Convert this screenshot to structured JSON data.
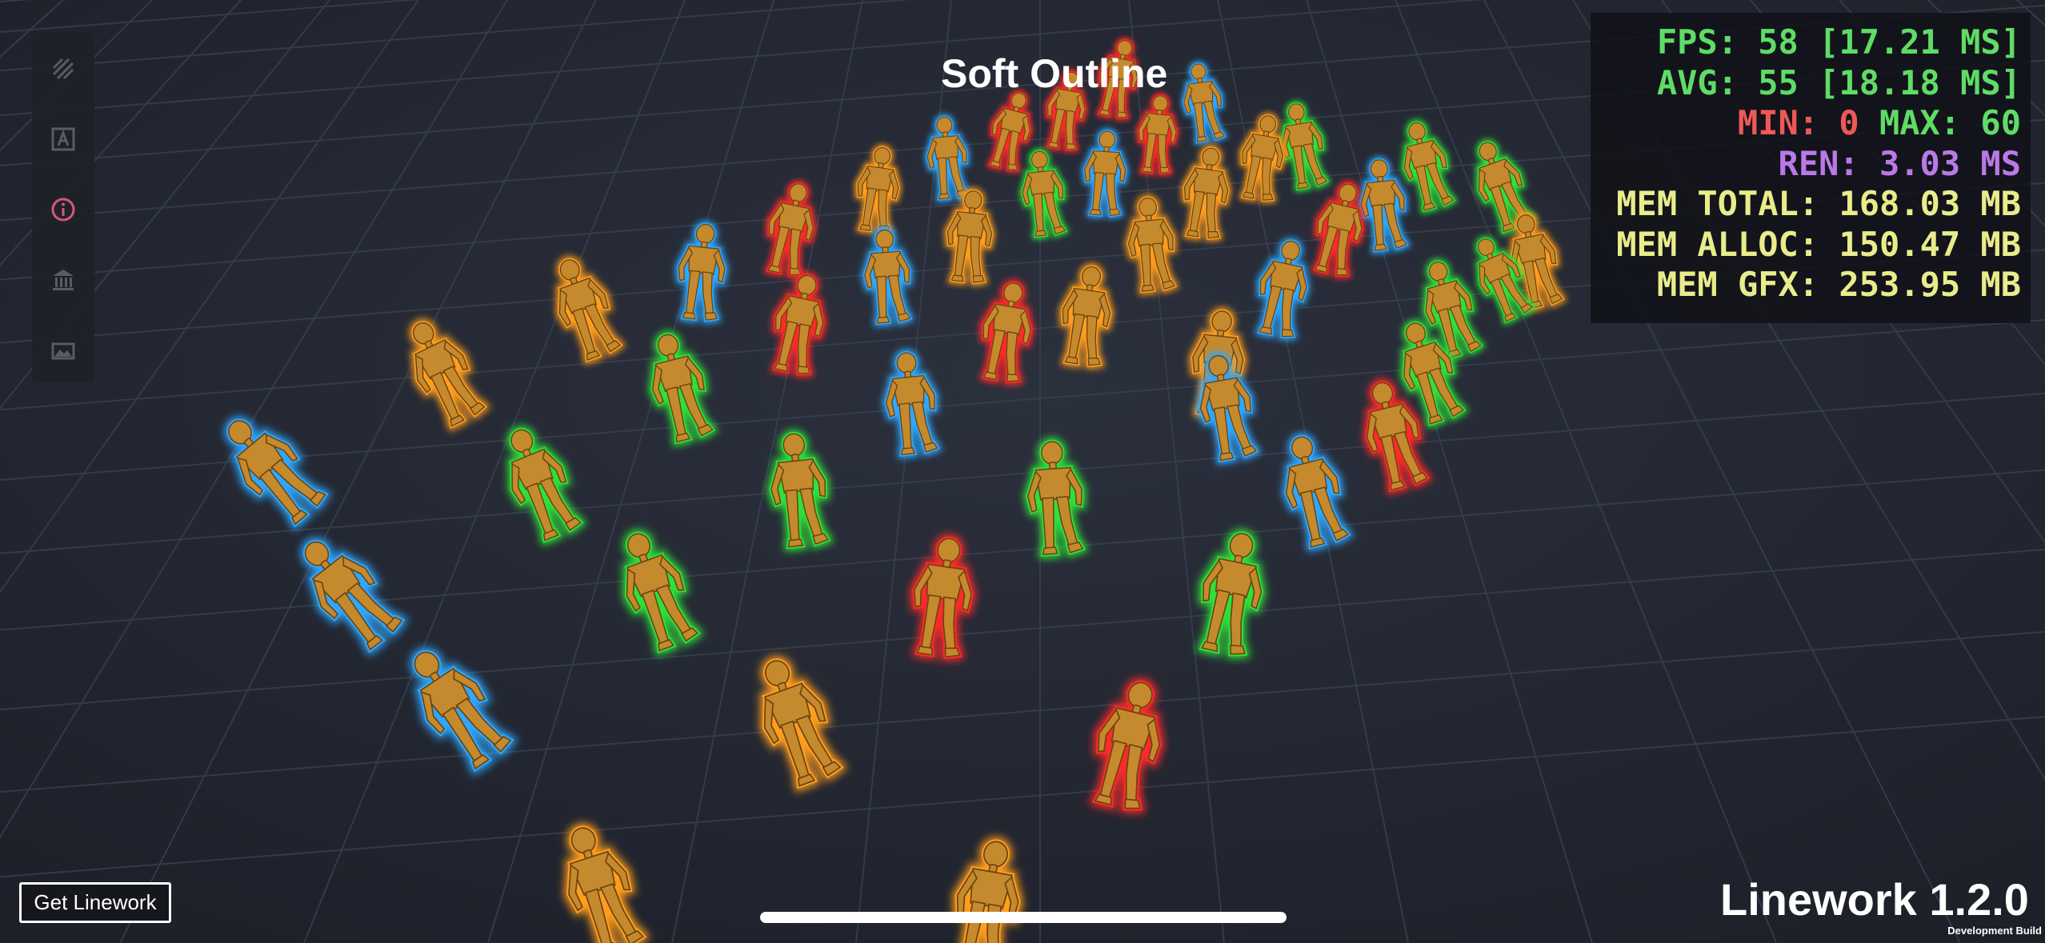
{
  "title": "Soft Outline",
  "stats": {
    "fps_label": "FPS:",
    "fps_value": "58 [17.21 MS]",
    "avg_label": "AVG:",
    "avg_value": "55 [18.18 MS]",
    "min_label": "MIN:",
    "min_value": "0",
    "max_label": "MAX:",
    "max_value": "60",
    "ren_label": "REN:",
    "ren_value": "3.03 MS",
    "mem_total_label": "MEM TOTAL:",
    "mem_total_value": "168.03 MB",
    "mem_alloc_label": "MEM ALLOC:",
    "mem_alloc_value": "150.47 MB",
    "mem_gfx_label": "MEM GFX:",
    "mem_gfx_value": "253.95 MB"
  },
  "sidebar": {
    "items": [
      {
        "icon": "hatch-pattern-icon"
      },
      {
        "icon": "letter-a-icon"
      },
      {
        "icon": "info-icon",
        "active": true
      },
      {
        "icon": "museum-icon"
      },
      {
        "icon": "scene-landscape-icon"
      }
    ]
  },
  "buttons": {
    "get_linework": "Get Linework"
  },
  "footer": {
    "version": "Linework 1.2.0",
    "build": "Development Build"
  },
  "colors": {
    "background": "#262a36",
    "grid": "#3a4050",
    "character_body": "#c58a2e",
    "outline_orange": "#ff9d1e",
    "outline_blue": "#2fa8ff",
    "outline_red": "#ff2a2a",
    "outline_green": "#2fe03a",
    "sidebar_active": "#e05a78"
  },
  "scene": {
    "characters": [
      {
        "outline": "red"
      },
      {
        "outline": "blue"
      },
      {
        "outline": "red"
      },
      {
        "outline": "red"
      },
      {
        "outline": "red"
      },
      {
        "outline": "blue"
      },
      {
        "outline": "orange"
      },
      {
        "outline": "blue"
      },
      {
        "outline": "green"
      },
      {
        "outline": "orange"
      },
      {
        "outline": "green"
      },
      {
        "outline": "red"
      },
      {
        "outline": "green"
      },
      {
        "outline": "orange"
      },
      {
        "outline": "blue"
      },
      {
        "outline": "orange"
      },
      {
        "outline": "orange"
      },
      {
        "outline": "red"
      },
      {
        "outline": "blue"
      },
      {
        "outline": "blue"
      },
      {
        "outline": "green"
      },
      {
        "outline": "red"
      },
      {
        "outline": "blue"
      },
      {
        "outline": "blue"
      },
      {
        "outline": "orange"
      },
      {
        "outline": "red"
      },
      {
        "outline": "orange"
      },
      {
        "outline": "green"
      },
      {
        "outline": "orange"
      },
      {
        "outline": "blue"
      },
      {
        "outline": "blue"
      },
      {
        "outline": "green"
      },
      {
        "outline": "orange"
      },
      {
        "outline": "green"
      },
      {
        "outline": "red"
      },
      {
        "outline": "orange"
      },
      {
        "outline": "green"
      },
      {
        "outline": "green"
      },
      {
        "outline": "green"
      },
      {
        "outline": "blue"
      },
      {
        "outline": "blue"
      },
      {
        "outline": "green"
      },
      {
        "outline": "red"
      },
      {
        "outline": "green"
      },
      {
        "outline": "blue"
      },
      {
        "outline": "orange"
      },
      {
        "outline": "red"
      },
      {
        "outline": "orange"
      },
      {
        "outline": "orange"
      },
      {
        "outline": "green"
      }
    ]
  }
}
